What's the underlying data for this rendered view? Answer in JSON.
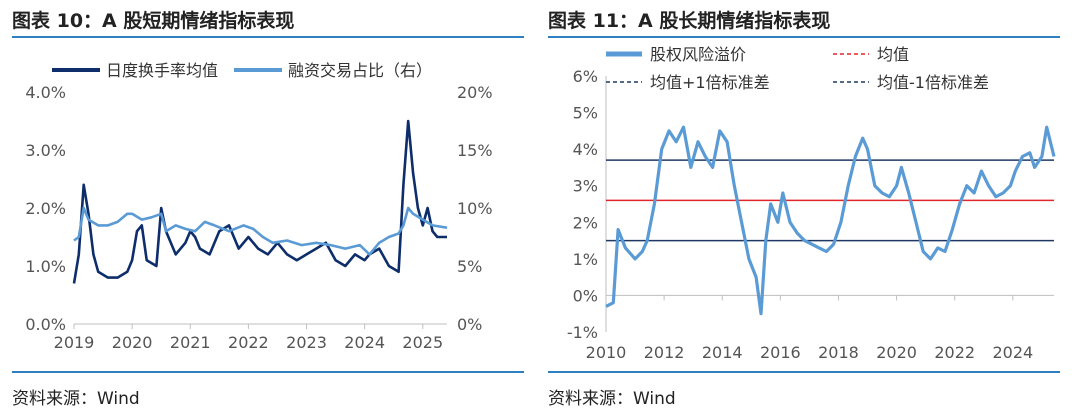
{
  "colors": {
    "dark_navy": "#0d2d6b",
    "light_blue": "#5b9bd5",
    "mean_red": "#e0262b",
    "band_navy": "#1f3864",
    "rule_blue": "#2f7fc1"
  },
  "left": {
    "title": "图表 10：A 股短期情绪指标表现",
    "source": "资料来源：Wind",
    "chart_data": {
      "type": "line",
      "title": "",
      "legend": [
        "日度换手率均值",
        "融资交易占比（右）"
      ],
      "legend_placement": "top",
      "x_ticks": [
        "2019",
        "2020",
        "2021",
        "2022",
        "2023",
        "2024",
        "2025"
      ],
      "xlim": [
        "2019-01",
        "2025-06"
      ],
      "y_left_ticks": [
        "0.0%",
        "1.0%",
        "2.0%",
        "3.0%",
        "4.0%"
      ],
      "y_left_range": [
        0,
        4
      ],
      "y_right_ticks": [
        "0%",
        "5%",
        "10%",
        "15%",
        "20%"
      ],
      "y_right_range": [
        0,
        20
      ],
      "grid": false,
      "series": [
        {
          "name": "日度换手率均值",
          "axis": "left",
          "x": [
            "2019-01",
            "2019-02",
            "2019-03",
            "2019-04",
            "2019-05",
            "2019-06",
            "2019-08",
            "2019-10",
            "2019-12",
            "2020-01",
            "2020-02",
            "2020-03",
            "2020-04",
            "2020-06",
            "2020-07",
            "2020-08",
            "2020-10",
            "2020-12",
            "2021-01",
            "2021-02",
            "2021-03",
            "2021-05",
            "2021-07",
            "2021-09",
            "2021-11",
            "2022-01",
            "2022-03",
            "2022-05",
            "2022-07",
            "2022-09",
            "2022-11",
            "2023-01",
            "2023-03",
            "2023-05",
            "2023-07",
            "2023-09",
            "2023-11",
            "2024-01",
            "2024-02",
            "2024-04",
            "2024-06",
            "2024-08",
            "2024-09",
            "2024-10",
            "2024-11",
            "2024-12",
            "2025-01",
            "2025-02",
            "2025-03",
            "2025-04",
            "2025-06"
          ],
          "y": [
            0.7,
            1.2,
            2.4,
            1.9,
            1.2,
            0.9,
            0.8,
            0.8,
            0.9,
            1.1,
            1.6,
            1.7,
            1.1,
            1.0,
            2.0,
            1.6,
            1.2,
            1.4,
            1.6,
            1.5,
            1.3,
            1.2,
            1.6,
            1.7,
            1.3,
            1.5,
            1.3,
            1.2,
            1.4,
            1.2,
            1.1,
            1.2,
            1.3,
            1.4,
            1.1,
            1.0,
            1.2,
            1.1,
            1.2,
            1.3,
            1.0,
            0.9,
            2.4,
            3.5,
            2.6,
            2.0,
            1.7,
            2.0,
            1.6,
            1.5,
            1.5
          ]
        },
        {
          "name": "融资交易占比（右）",
          "axis": "right",
          "x": [
            "2019-01",
            "2019-02",
            "2019-03",
            "2019-04",
            "2019-06",
            "2019-08",
            "2019-10",
            "2019-12",
            "2020-01",
            "2020-03",
            "2020-05",
            "2020-07",
            "2020-08",
            "2020-10",
            "2020-12",
            "2021-02",
            "2021-04",
            "2021-06",
            "2021-09",
            "2021-12",
            "2022-02",
            "2022-04",
            "2022-06",
            "2022-09",
            "2022-12",
            "2023-03",
            "2023-06",
            "2023-09",
            "2023-12",
            "2024-02",
            "2024-04",
            "2024-06",
            "2024-08",
            "2024-09",
            "2024-10",
            "2024-11",
            "2025-01",
            "2025-03",
            "2025-06"
          ],
          "y": [
            7.2,
            7.5,
            10.0,
            9.0,
            8.5,
            8.5,
            8.8,
            9.5,
            9.5,
            9.0,
            9.2,
            9.5,
            8.0,
            8.5,
            8.2,
            8.0,
            8.8,
            8.5,
            8.0,
            8.5,
            8.2,
            7.5,
            7.0,
            7.2,
            6.8,
            7.0,
            6.8,
            6.5,
            6.8,
            6.0,
            7.0,
            7.5,
            7.8,
            8.5,
            10.0,
            9.5,
            9.0,
            8.5,
            8.3
          ]
        }
      ]
    }
  },
  "right": {
    "title": "图表 11：A 股长期情绪指标表现",
    "source": "资料来源：Wind",
    "chart_data": {
      "type": "line",
      "title": "",
      "legend": [
        "股权风险溢价",
        "均值",
        "均值+1倍标准差",
        "均值-1倍标准差"
      ],
      "legend_placement": "top",
      "x_ticks": [
        "2010",
        "2012",
        "2014",
        "2016",
        "2018",
        "2020",
        "2022",
        "2024"
      ],
      "xlim": [
        "2010-01",
        "2025-06"
      ],
      "y_ticks": [
        "-1%",
        "0%",
        "1%",
        "2%",
        "3%",
        "4%",
        "5%",
        "6%"
      ],
      "ylim": [
        -1,
        6
      ],
      "grid": false,
      "reference_lines": [
        {
          "name": "均值",
          "value": 2.6
        },
        {
          "name": "均值+1倍标准差",
          "value": 3.7
        },
        {
          "name": "均值-1倍标准差",
          "value": 1.5
        }
      ],
      "series": [
        {
          "name": "股权风险溢价",
          "x": [
            "2010-01",
            "2010-04",
            "2010-06",
            "2010-09",
            "2011-01",
            "2011-04",
            "2011-06",
            "2011-09",
            "2011-12",
            "2012-03",
            "2012-06",
            "2012-09",
            "2012-12",
            "2013-03",
            "2013-06",
            "2013-09",
            "2013-12",
            "2014-03",
            "2014-06",
            "2014-09",
            "2014-12",
            "2015-03",
            "2015-05",
            "2015-07",
            "2015-09",
            "2015-12",
            "2016-02",
            "2016-05",
            "2016-08",
            "2016-11",
            "2017-02",
            "2017-05",
            "2017-08",
            "2017-11",
            "2018-02",
            "2018-05",
            "2018-08",
            "2018-11",
            "2019-01",
            "2019-04",
            "2019-07",
            "2019-10",
            "2020-01",
            "2020-03",
            "2020-06",
            "2020-09",
            "2020-12",
            "2021-03",
            "2021-06",
            "2021-09",
            "2021-12",
            "2022-03",
            "2022-06",
            "2022-09",
            "2022-12",
            "2023-03",
            "2023-06",
            "2023-09",
            "2023-12",
            "2024-02",
            "2024-05",
            "2024-08",
            "2024-10",
            "2025-01",
            "2025-03",
            "2025-06"
          ],
          "y": [
            -0.3,
            -0.2,
            1.8,
            1.3,
            1.0,
            1.2,
            1.5,
            2.5,
            4.0,
            4.5,
            4.2,
            4.6,
            3.5,
            4.2,
            3.8,
            3.5,
            4.5,
            4.2,
            3.0,
            2.0,
            1.0,
            0.5,
            -0.5,
            1.5,
            2.5,
            2.0,
            2.8,
            2.0,
            1.7,
            1.5,
            1.4,
            1.3,
            1.2,
            1.4,
            2.0,
            3.0,
            3.8,
            4.3,
            4.0,
            3.0,
            2.8,
            2.7,
            3.0,
            3.5,
            2.8,
            2.0,
            1.2,
            1.0,
            1.3,
            1.2,
            1.8,
            2.5,
            3.0,
            2.8,
            3.4,
            3.0,
            2.7,
            2.8,
            3.0,
            3.4,
            3.8,
            3.9,
            3.5,
            3.8,
            4.6,
            3.8
          ]
        }
      ]
    }
  }
}
